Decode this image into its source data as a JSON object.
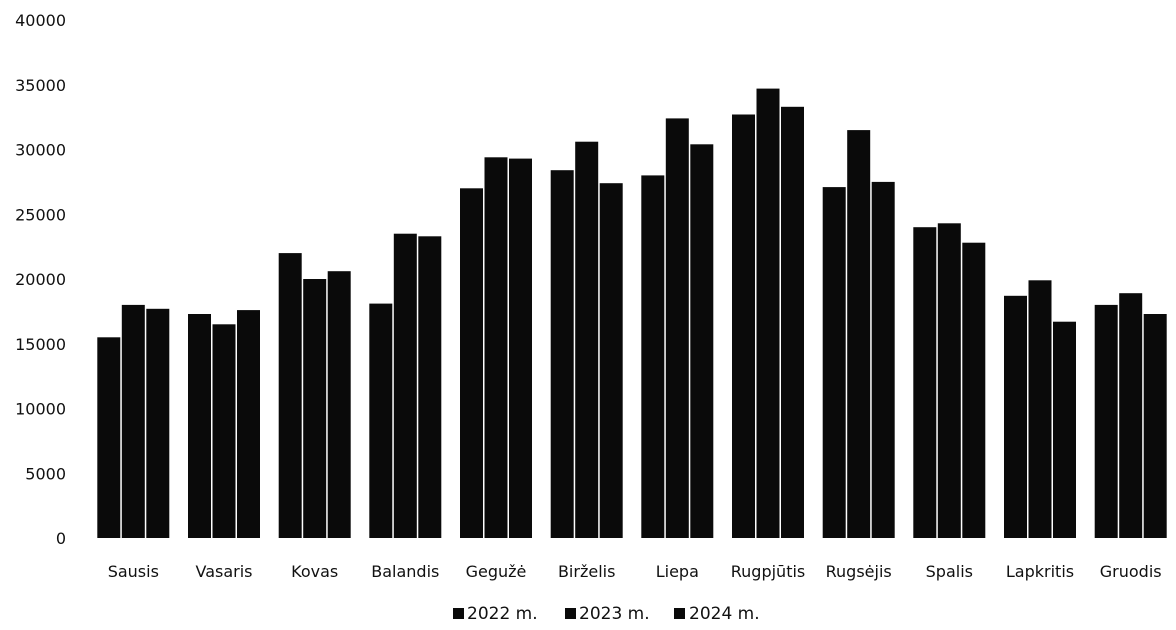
{
  "chart_data": {
    "type": "bar",
    "title": "",
    "xlabel": "",
    "ylabel": "",
    "ylim": [
      0,
      40000
    ],
    "yticks": [
      0,
      5000,
      10000,
      15000,
      20000,
      25000,
      30000,
      35000,
      40000
    ],
    "grid": false,
    "legend_position": "bottom",
    "categories": [
      "Sausis",
      "Vasaris",
      "Kovas",
      "Balandis",
      "Gegužė",
      "Birželis",
      "Liepa",
      "Rugpjūtis",
      "Rugsėjis",
      "Spalis",
      "Lapkritis",
      "Gruodis"
    ],
    "series": [
      {
        "name": "2022 m.",
        "values": [
          15500,
          17300,
          22000,
          18100,
          27000,
          28400,
          28000,
          32700,
          27100,
          24000,
          18700,
          18000
        ]
      },
      {
        "name": "2023 m.",
        "values": [
          18000,
          16500,
          20000,
          23500,
          29400,
          30600,
          32400,
          34700,
          31500,
          24300,
          19900,
          18900
        ]
      },
      {
        "name": "2024 m.",
        "values": [
          17700,
          17600,
          20600,
          23300,
          29300,
          27400,
          30400,
          33300,
          27500,
          22800,
          16700,
          17300
        ]
      }
    ],
    "series_colors": [
      "#0a0a0a",
      "#0a0a0a",
      "#0a0a0a"
    ]
  }
}
